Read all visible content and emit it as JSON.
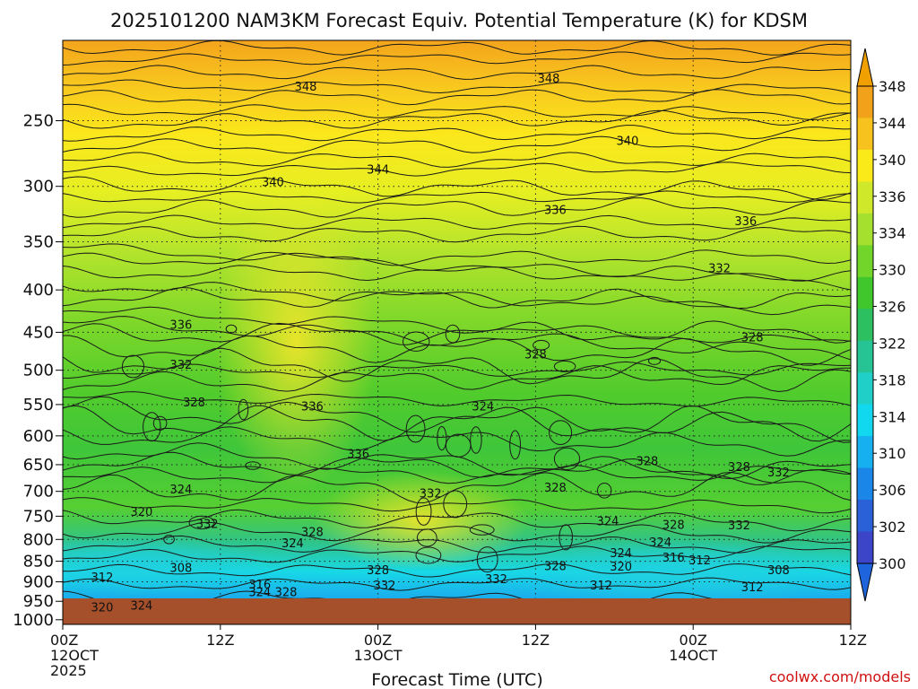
{
  "title": "2025101200 NAM3KM Forecast Equiv. Potential Temperature (K) for KDSM",
  "xlabel": "Forecast Time (UTC)",
  "credit": "coolwx.com/models",
  "chart_data": {
    "type": "heatmap",
    "title": "2025101200 NAM3KM Forecast Equiv. Potential Temperature (K) for KDSM",
    "xlabel": "Forecast Time (UTC)",
    "ylabel": "",
    "x_ticks": [
      {
        "hour": 0,
        "lines": [
          "00Z",
          "12OCT",
          "2025"
        ]
      },
      {
        "hour": 12,
        "lines": [
          "12Z"
        ]
      },
      {
        "hour": 24,
        "lines": [
          "00Z",
          "13OCT"
        ]
      },
      {
        "hour": 36,
        "lines": [
          "12Z"
        ]
      },
      {
        "hour": 48,
        "lines": [
          "00Z",
          "14OCT"
        ]
      },
      {
        "hour": 60,
        "lines": [
          "12Z"
        ]
      }
    ],
    "xlim": [
      0,
      60
    ],
    "y_ticks": [
      250,
      300,
      350,
      400,
      450,
      500,
      550,
      600,
      650,
      700,
      750,
      800,
      850,
      900,
      950,
      1000
    ],
    "ylim": [
      200,
      1013
    ],
    "yscale": "log-pressure",
    "grid": true,
    "colorbar": {
      "labels": [
        348,
        344,
        340,
        336,
        334,
        330,
        326,
        322,
        318,
        314,
        310,
        306,
        302,
        300
      ],
      "colors": [
        "#f2a11a",
        "#f7c21e",
        "#faea1a",
        "#cfe82a",
        "#a6e02e",
        "#72d62a",
        "#3fc72c",
        "#2cc060",
        "#26c494",
        "#21cfc9",
        "#12d8ef",
        "#16b0f1",
        "#1a86e8",
        "#2a60d8",
        "#3c45c8"
      ],
      "top_arrow_color": "#f0a000",
      "bottom_arrow_color": "#1e64dc"
    },
    "contour_labels": [
      {
        "text": "348",
        "hour": 18.5,
        "p": 227
      },
      {
        "text": "348",
        "hour": 37.0,
        "p": 222
      },
      {
        "text": "340",
        "hour": 43.0,
        "p": 264
      },
      {
        "text": "344",
        "hour": 24.0,
        "p": 286
      },
      {
        "text": "340",
        "hour": 16.0,
        "p": 296
      },
      {
        "text": "336",
        "hour": 37.5,
        "p": 320
      },
      {
        "text": "336",
        "hour": 52.0,
        "p": 330
      },
      {
        "text": "332",
        "hour": 50.0,
        "p": 376
      },
      {
        "text": "336",
        "hour": 9.0,
        "p": 440
      },
      {
        "text": "328",
        "hour": 52.5,
        "p": 456
      },
      {
        "text": "328",
        "hour": 36.0,
        "p": 478
      },
      {
        "text": "332",
        "hour": 9.0,
        "p": 492
      },
      {
        "text": "328",
        "hour": 10.0,
        "p": 546
      },
      {
        "text": "336",
        "hour": 19.0,
        "p": 552
      },
      {
        "text": "324",
        "hour": 32.0,
        "p": 552
      },
      {
        "text": "336",
        "hour": 22.5,
        "p": 630
      },
      {
        "text": "328",
        "hour": 44.5,
        "p": 643
      },
      {
        "text": "328",
        "hour": 51.5,
        "p": 653
      },
      {
        "text": "332",
        "hour": 54.5,
        "p": 663
      },
      {
        "text": "324",
        "hour": 9.0,
        "p": 695
      },
      {
        "text": "328",
        "hour": 37.5,
        "p": 692
      },
      {
        "text": "332",
        "hour": 28.0,
        "p": 703
      },
      {
        "text": "320",
        "hour": 6.0,
        "p": 740
      },
      {
        "text": "332",
        "hour": 11.0,
        "p": 765
      },
      {
        "text": "324",
        "hour": 41.5,
        "p": 760
      },
      {
        "text": "328",
        "hour": 46.5,
        "p": 767
      },
      {
        "text": "332",
        "hour": 51.5,
        "p": 768
      },
      {
        "text": "328",
        "hour": 19.0,
        "p": 783
      },
      {
        "text": "324",
        "hour": 17.5,
        "p": 807
      },
      {
        "text": "324",
        "hour": 45.5,
        "p": 805
      },
      {
        "text": "324",
        "hour": 42.5,
        "p": 830
      },
      {
        "text": "316",
        "hour": 46.5,
        "p": 840
      },
      {
        "text": "312",
        "hour": 48.5,
        "p": 847
      },
      {
        "text": "308",
        "hour": 9.0,
        "p": 865
      },
      {
        "text": "328",
        "hour": 37.5,
        "p": 860
      },
      {
        "text": "320",
        "hour": 42.5,
        "p": 862
      },
      {
        "text": "328",
        "hour": 24.0,
        "p": 870
      },
      {
        "text": "308",
        "hour": 54.5,
        "p": 870
      },
      {
        "text": "312",
        "hour": 3.0,
        "p": 888
      },
      {
        "text": "332",
        "hour": 33.0,
        "p": 892
      },
      {
        "text": "316",
        "hour": 15.0,
        "p": 905
      },
      {
        "text": "332",
        "hour": 24.5,
        "p": 908
      },
      {
        "text": "312",
        "hour": 41.0,
        "p": 908
      },
      {
        "text": "312",
        "hour": 52.5,
        "p": 912
      },
      {
        "text": "324",
        "hour": 15.0,
        "p": 925
      },
      {
        "text": "328",
        "hour": 17.0,
        "p": 925
      },
      {
        "text": "324",
        "hour": 6.0,
        "p": 960
      },
      {
        "text": "320",
        "hour": 3.0,
        "p": 965
      }
    ]
  }
}
